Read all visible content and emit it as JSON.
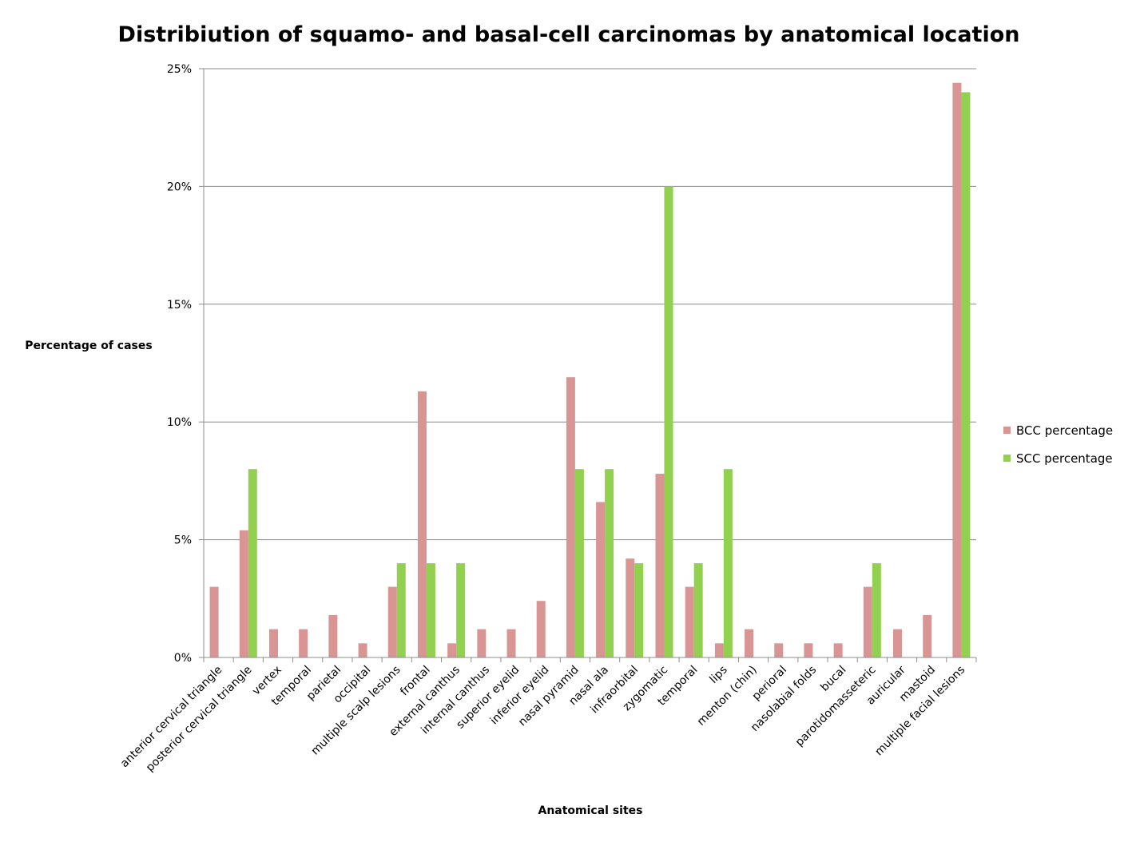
{
  "chart_data": {
    "type": "bar",
    "title": "Distribiution  of squamo- and basal-cell carcinomas by anatomical location",
    "xlabel": "Anatomical sites",
    "ylabel": "Percentage of  cases",
    "ylim": [
      0,
      25
    ],
    "yticks": [
      "0%",
      "5%",
      "10%",
      "15%",
      "20%",
      "25%"
    ],
    "grid": true,
    "legend_position": "right",
    "categories": [
      "anterior cervical triangle",
      "posterior cervical triangle",
      "vertex",
      "temporal",
      "parietal",
      "occipital",
      "multiple scalp lesions",
      "frontal",
      "external canthus",
      "internal canthus",
      "superior eyelid",
      "inferior eyelid",
      "nasal pyramid",
      "nasal ala",
      "infraorbital",
      "zygomatic",
      "temporal",
      "lips",
      "menton (chin)",
      "perioral",
      "nasolabial folds",
      "bucal",
      "parotidomasseteric",
      "auricular",
      "mastoid",
      "multiple facial lesions"
    ],
    "series": [
      {
        "name": "BCC percentage",
        "color": "#d99594",
        "values": [
          3.0,
          5.4,
          1.2,
          1.2,
          1.8,
          0.6,
          3.0,
          11.3,
          0.6,
          1.2,
          1.2,
          2.4,
          11.9,
          6.6,
          4.2,
          7.8,
          3.0,
          0.6,
          1.2,
          0.6,
          0.6,
          0.6,
          3.0,
          1.2,
          1.8,
          24.4
        ]
      },
      {
        "name": "SCC percentage",
        "color": "#92d050",
        "values": [
          0,
          8,
          0,
          0,
          0,
          0,
          4,
          4,
          4,
          0,
          0,
          0,
          8,
          8,
          4,
          20,
          4,
          8,
          0,
          0,
          0,
          0,
          4,
          0,
          0,
          24
        ]
      }
    ]
  }
}
